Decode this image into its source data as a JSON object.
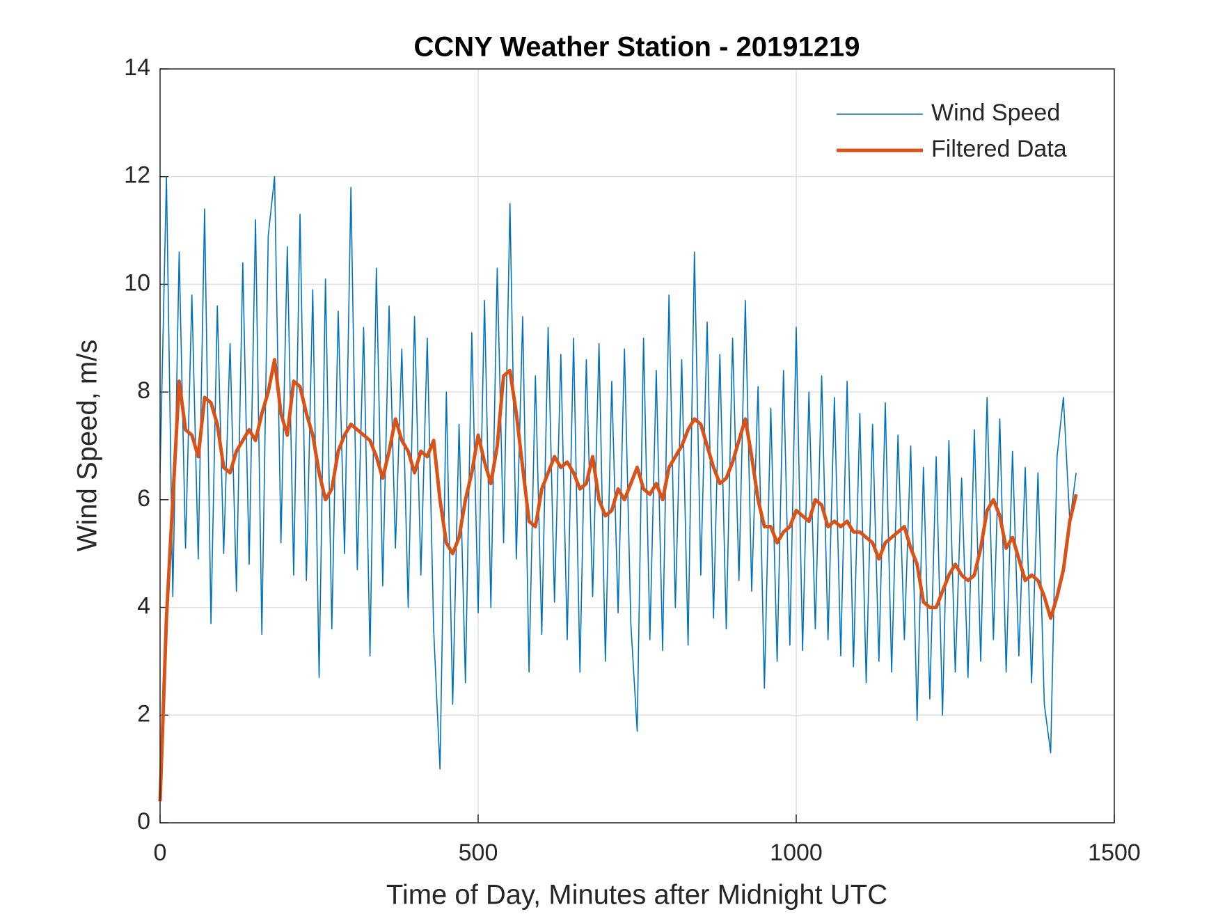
{
  "chart_data": {
    "type": "line",
    "title": "CCNY Weather Station - 20191219",
    "xlabel": "Time of Day, Minutes after Midnight UTC",
    "ylabel": "Wind Speed, m/s",
    "x": [
      0,
      10,
      20,
      30,
      40,
      50,
      60,
      70,
      80,
      90,
      100,
      110,
      120,
      130,
      140,
      150,
      160,
      170,
      180,
      190,
      200,
      210,
      220,
      230,
      240,
      250,
      260,
      270,
      280,
      290,
      300,
      310,
      320,
      330,
      340,
      350,
      360,
      370,
      380,
      390,
      400,
      410,
      420,
      430,
      440,
      450,
      460,
      470,
      480,
      490,
      500,
      510,
      520,
      530,
      540,
      550,
      560,
      570,
      580,
      590,
      600,
      610,
      620,
      630,
      640,
      650,
      660,
      670,
      680,
      690,
      700,
      710,
      720,
      730,
      740,
      750,
      760,
      770,
      780,
      790,
      800,
      810,
      820,
      830,
      840,
      850,
      860,
      870,
      880,
      890,
      900,
      910,
      920,
      930,
      940,
      950,
      960,
      970,
      980,
      990,
      1000,
      1010,
      1020,
      1030,
      1040,
      1050,
      1060,
      1070,
      1080,
      1090,
      1100,
      1110,
      1120,
      1130,
      1140,
      1150,
      1160,
      1170,
      1180,
      1190,
      1200,
      1210,
      1220,
      1230,
      1240,
      1250,
      1260,
      1270,
      1280,
      1290,
      1300,
      1310,
      1320,
      1330,
      1340,
      1350,
      1360,
      1370,
      1380,
      1390,
      1400,
      1410,
      1420,
      1430,
      1440
    ],
    "series": [
      {
        "name": "Wind Speed",
        "color": "#0072BD",
        "width": 1.6,
        "values": [
          6.5,
          12.0,
          4.2,
          10.6,
          5.1,
          9.8,
          4.9,
          11.4,
          3.7,
          9.6,
          5.0,
          8.9,
          4.3,
          10.4,
          4.8,
          11.2,
          3.5,
          10.9,
          12.0,
          5.2,
          10.7,
          4.6,
          11.3,
          4.5,
          9.9,
          2.7,
          10.1,
          3.6,
          9.5,
          5.0,
          11.8,
          4.7,
          9.2,
          3.1,
          10.3,
          4.4,
          9.6,
          5.1,
          8.8,
          4.0,
          9.4,
          4.6,
          9.0,
          3.6,
          1.0,
          8.0,
          2.2,
          7.4,
          2.6,
          9.1,
          3.9,
          9.7,
          4.0,
          10.3,
          5.2,
          11.5,
          4.9,
          9.4,
          2.8,
          8.3,
          3.5,
          9.2,
          4.1,
          8.7,
          3.4,
          9.0,
          2.8,
          8.6,
          4.2,
          8.9,
          3.0,
          8.2,
          3.9,
          8.8,
          3.7,
          1.7,
          9.0,
          3.4,
          8.4,
          3.2,
          9.8,
          4.0,
          8.6,
          3.3,
          10.6,
          4.6,
          9.3,
          3.8,
          8.7,
          3.6,
          9.0,
          4.5,
          9.7,
          4.3,
          8.1,
          2.5,
          7.7,
          3.0,
          8.4,
          3.3,
          9.2,
          3.2,
          8.0,
          3.6,
          8.3,
          3.4,
          7.9,
          3.1,
          8.2,
          2.9,
          7.6,
          2.6,
          7.4,
          3.0,
          7.8,
          2.8,
          7.2,
          3.4,
          7.0,
          1.9,
          6.6,
          2.3,
          6.8,
          2.0,
          7.1,
          2.8,
          6.4,
          2.7,
          7.3,
          3.0,
          7.9,
          3.4,
          7.5,
          2.8,
          6.9,
          3.1,
          6.6,
          2.6,
          6.5,
          2.2,
          1.3,
          6.8,
          7.9,
          5.6,
          6.5
        ]
      },
      {
        "name": "Filtered Data",
        "color": "#D95319",
        "width": 5,
        "values": [
          0.4,
          3.8,
          6.0,
          8.2,
          7.3,
          7.2,
          6.8,
          7.9,
          7.8,
          7.4,
          6.6,
          6.5,
          6.9,
          7.1,
          7.3,
          7.1,
          7.6,
          8.0,
          8.6,
          7.6,
          7.2,
          8.2,
          8.1,
          7.6,
          7.2,
          6.5,
          6.0,
          6.2,
          6.9,
          7.2,
          7.4,
          7.3,
          7.2,
          7.1,
          6.8,
          6.4,
          6.9,
          7.5,
          7.1,
          6.9,
          6.5,
          6.9,
          6.8,
          7.1,
          6.0,
          5.2,
          5.0,
          5.3,
          6.0,
          6.5,
          7.2,
          6.7,
          6.3,
          7.0,
          8.3,
          8.4,
          7.6,
          6.6,
          5.6,
          5.5,
          6.2,
          6.5,
          6.8,
          6.6,
          6.7,
          6.5,
          6.2,
          6.3,
          6.8,
          6.0,
          5.7,
          5.8,
          6.2,
          6.0,
          6.3,
          6.6,
          6.2,
          6.1,
          6.3,
          6.0,
          6.6,
          6.8,
          7.0,
          7.3,
          7.5,
          7.4,
          7.0,
          6.6,
          6.3,
          6.4,
          6.7,
          7.1,
          7.5,
          6.8,
          6.0,
          5.5,
          5.5,
          5.2,
          5.4,
          5.5,
          5.8,
          5.7,
          5.6,
          6.0,
          5.9,
          5.5,
          5.6,
          5.5,
          5.6,
          5.4,
          5.4,
          5.3,
          5.2,
          4.9,
          5.2,
          5.3,
          5.4,
          5.5,
          5.1,
          4.8,
          4.1,
          4.0,
          4.0,
          4.3,
          4.6,
          4.8,
          4.6,
          4.5,
          4.6,
          5.1,
          5.8,
          6.0,
          5.7,
          5.1,
          5.3,
          4.9,
          4.5,
          4.6,
          4.5,
          4.2,
          3.8,
          4.2,
          4.7,
          5.6,
          6.1
        ]
      }
    ],
    "xlim": [
      0,
      1500
    ],
    "xticks": [
      0,
      500,
      1000,
      1500
    ],
    "ylim": [
      0,
      14
    ],
    "yticks": [
      0,
      2,
      4,
      6,
      8,
      10,
      12,
      14
    ],
    "grid": true,
    "legend": "northeast"
  }
}
